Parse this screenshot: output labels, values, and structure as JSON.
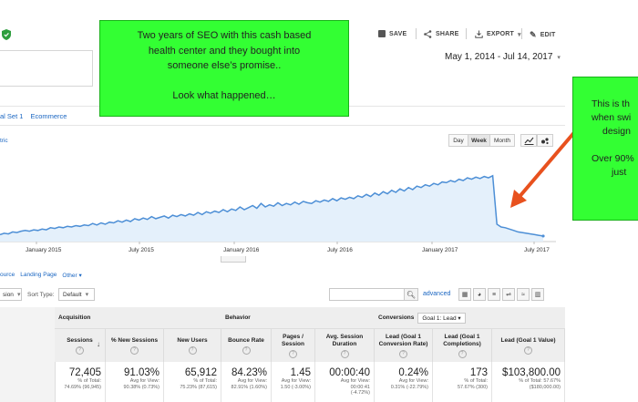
{
  "toolbar": {
    "save_label": "SAVE",
    "share_label": "SHARE",
    "export_label": "EXPORT",
    "edit_label": "EDIT"
  },
  "date_range": "May 1, 2014 - Jul 14, 2017",
  "tabs": [
    "al Set 1",
    "Ecommerce"
  ],
  "metric_selector": "tric",
  "granularity": {
    "day": "Day",
    "week": "Week",
    "month": "Month",
    "active": "Week"
  },
  "chart_data": {
    "type": "area",
    "x_tick_labels": [
      "January 2015",
      "July 2015",
      "January 2016",
      "July 2016",
      "January 2017",
      "July 2017"
    ],
    "series": [
      {
        "color": "#4d8fd6",
        "note": "weekly sessions, relative scale (no y-axis shown)",
        "values": [
          0.1,
          0.12,
          0.11,
          0.14,
          0.13,
          0.15,
          0.16,
          0.15,
          0.17,
          0.16,
          0.18,
          0.17,
          0.2,
          0.19,
          0.21,
          0.2,
          0.22,
          0.21,
          0.23,
          0.22,
          0.24,
          0.23,
          0.26,
          0.24,
          0.27,
          0.25,
          0.28,
          0.27,
          0.3,
          0.28,
          0.31,
          0.29,
          0.33,
          0.31,
          0.34,
          0.32,
          0.36,
          0.33,
          0.35,
          0.37,
          0.34,
          0.38,
          0.36,
          0.39,
          0.37,
          0.4,
          0.38,
          0.42,
          0.39,
          0.43,
          0.41,
          0.44,
          0.42,
          0.46,
          0.43,
          0.47,
          0.45,
          0.5,
          0.46,
          0.49,
          0.52,
          0.48,
          0.55,
          0.5,
          0.53,
          0.51,
          0.56,
          0.52,
          0.55,
          0.53,
          0.57,
          0.54,
          0.58,
          0.56,
          0.55,
          0.59,
          0.57,
          0.6,
          0.58,
          0.62,
          0.59,
          0.63,
          0.61,
          0.64,
          0.62,
          0.66,
          0.64,
          0.68,
          0.65,
          0.7,
          0.67,
          0.72,
          0.69,
          0.74,
          0.71,
          0.76,
          0.73,
          0.78,
          0.75,
          0.8,
          0.78,
          0.82,
          0.8,
          0.84,
          0.82,
          0.86,
          0.85,
          0.88,
          0.86,
          0.9,
          0.88,
          0.92,
          0.9,
          0.93,
          0.91,
          0.94,
          0.92,
          0.95,
          0.25,
          0.21,
          0.2,
          0.18,
          0.16,
          0.14,
          0.13,
          0.12,
          0.11,
          0.1,
          0.09,
          0.08
        ]
      }
    ]
  },
  "dimensions": [
    "ource",
    "Landing Page",
    "Other"
  ],
  "controls": {
    "secondary_dim": "sion",
    "sort_label": "Sort Type:",
    "sort_value": "Default",
    "advanced_label": "advanced"
  },
  "table": {
    "groups": {
      "acquisition": "Acquisition",
      "behavior": "Behavior",
      "conversions": "Conversions",
      "goal_select": "Goal 1: Lead"
    },
    "columns": [
      {
        "label": "Sessions",
        "value": "72,405",
        "sub1": "% of Total:",
        "sub2": "74.69% (96,945)"
      },
      {
        "label": "% New Sessions",
        "value": "91.03%",
        "sub1": "Avg for View:",
        "sub2": "90.38% (0.73%)"
      },
      {
        "label": "New Users",
        "value": "65,912",
        "sub1": "% of Total:",
        "sub2": "75.23% (87,615)"
      },
      {
        "label": "Bounce Rate",
        "value": "84.23%",
        "sub1": "Avg for View:",
        "sub2": "82.91% (1.60%)"
      },
      {
        "label": "Pages / Session",
        "value": "1.45",
        "sub1": "Avg for View:",
        "sub2": "1.50 (-3.00%)"
      },
      {
        "label": "Avg. Session Duration",
        "value": "00:00:40",
        "sub1": "Avg for View:",
        "sub2": "00:00:41",
        "sub3": "(-4.72%)"
      },
      {
        "label": "Lead (Goal 1 Conversion Rate)",
        "value": "0.24%",
        "sub1": "Avg for View:",
        "sub2": "0.31% (-22.79%)"
      },
      {
        "label": "Lead (Goal 1 Completions)",
        "value": "173",
        "sub1": "% of Total:",
        "sub2": "57.67% (300)"
      },
      {
        "label": "Lead (Goal 1 Value)",
        "value": "$103,800.00",
        "sub1": "% of Total: 57.67%",
        "sub2": "($180,000.00)"
      }
    ]
  },
  "annotations": {
    "main_lines": [
      "Two years of SEO with this cash based",
      "health center and they bought into",
      "someone else’s promise..",
      "",
      "Look what happened…"
    ],
    "right_lines": [
      "This is th",
      "when swi",
      "design",
      "",
      "Over 90%",
      "just"
    ],
    "arrow_color": "#e8511e",
    "note_color": "#33ff33"
  }
}
